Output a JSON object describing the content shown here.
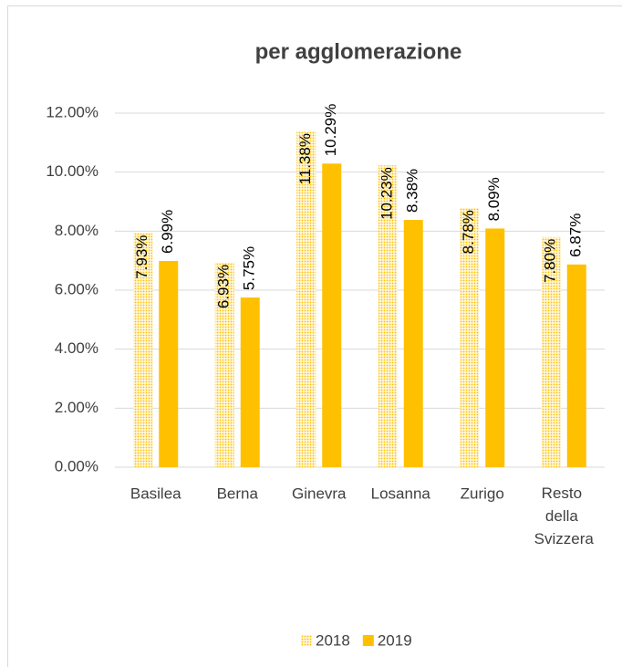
{
  "chart_data": {
    "type": "bar",
    "title": "per agglomerazione",
    "categories": [
      "Basilea",
      "Berna",
      "Ginevra",
      "Losanna",
      "Zurigo",
      "Resto della Svizzera"
    ],
    "series": [
      {
        "name": "2018",
        "color": "#FFC000",
        "pattern": "dotted",
        "values": [
          7.93,
          6.93,
          11.38,
          10.23,
          8.78,
          7.8
        ],
        "value_labels": [
          "7.93%",
          "6.93%",
          "11.38%",
          "10.23%",
          "8.78%",
          "7.80%"
        ]
      },
      {
        "name": "2019",
        "color": "#FFC000",
        "values": [
          6.99,
          5.75,
          10.29,
          8.38,
          8.09,
          6.87
        ],
        "value_labels": [
          "6.99%",
          "5.75%",
          "10.29%",
          "8.38%",
          "8.09%",
          "6.87%"
        ]
      }
    ],
    "ylim": [
      0,
      12
    ],
    "yticks": [
      {
        "value": 0,
        "label": "0.00%"
      },
      {
        "value": 2,
        "label": "2.00%"
      },
      {
        "value": 4,
        "label": "4.00%"
      },
      {
        "value": 6,
        "label": "6.00%"
      },
      {
        "value": 8,
        "label": "8.00%"
      },
      {
        "value": 10,
        "label": "10.00%"
      },
      {
        "value": 12,
        "label": "12.00%"
      }
    ],
    "grid": true,
    "legend": "bottom"
  }
}
